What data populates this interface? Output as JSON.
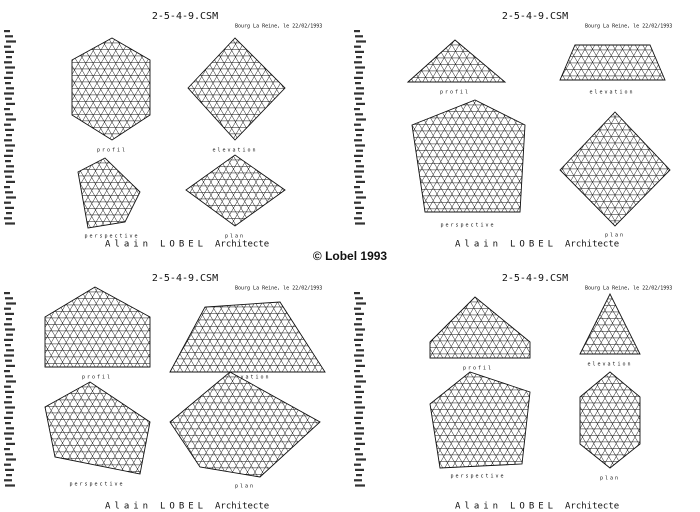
{
  "copyright": "© Lobel 1993",
  "sheets": [
    {
      "file": "2-5-4-9.CSM",
      "place": "Bourg La Reine, le 22/02/1993",
      "views": [
        "profil",
        "elevation",
        "perspective",
        "plan"
      ],
      "author": [
        "Alain",
        "LOBEL",
        "Architecte"
      ]
    },
    {
      "file": "2-5-4-9.CSM",
      "place": "Bourg La Reine, le 22/02/1993",
      "views": [
        "profil",
        "elevation",
        "perspective",
        "plan"
      ],
      "author": [
        "Alain",
        "LOBEL",
        "Architecte"
      ]
    },
    {
      "file": "2-5-4-9.CSM",
      "place": "Bourg La Reine, le 22/02/1993",
      "views": [
        "profil",
        "elevation",
        "perspective",
        "plan"
      ],
      "author": [
        "Alain",
        "LOBEL",
        "Architecte"
      ]
    },
    {
      "file": "2-5-4-9.CSM",
      "place": "Bourg La Reine, le 22/02/1993",
      "views": [
        "profil",
        "elevation",
        "perspective",
        "plan"
      ],
      "author": [
        "Alain",
        "LOBEL",
        "Architecte"
      ]
    }
  ]
}
